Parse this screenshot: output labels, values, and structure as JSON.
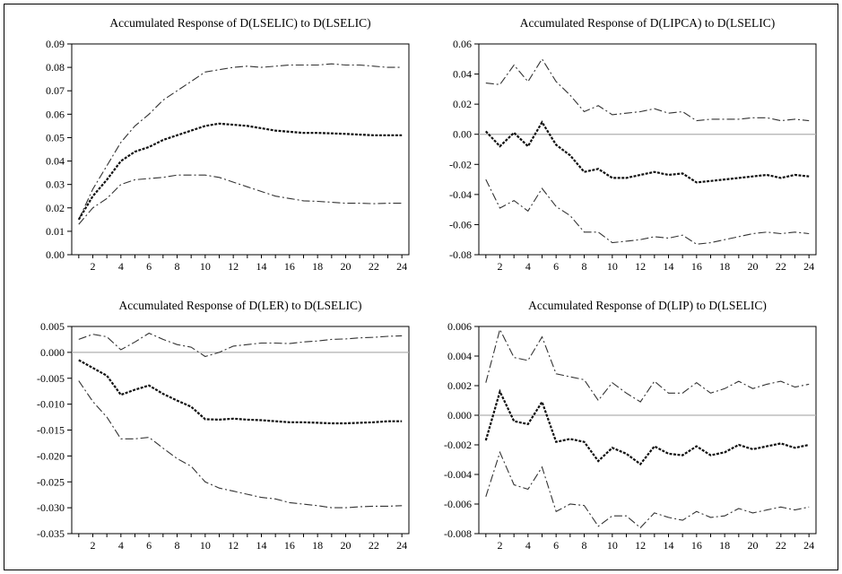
{
  "chart_data": [
    {
      "type": "line",
      "title": "Accumulated Response of D(LSELIC) to D(LSELIC)",
      "x": [
        1,
        2,
        3,
        4,
        5,
        6,
        7,
        8,
        9,
        10,
        11,
        12,
        13,
        14,
        15,
        16,
        17,
        18,
        19,
        20,
        21,
        22,
        23,
        24
      ],
      "xticks": [
        2,
        4,
        6,
        8,
        10,
        12,
        14,
        16,
        18,
        20,
        22,
        24
      ],
      "ylim": [
        0,
        0.09
      ],
      "yticks": [
        "0.00",
        "0.01",
        "0.02",
        "0.03",
        "0.04",
        "0.05",
        "0.06",
        "0.07",
        "0.08",
        "0.09"
      ],
      "zero_line": false,
      "series": [
        {
          "style": "upper",
          "values": [
            0.015,
            0.028,
            0.038,
            0.048,
            0.055,
            0.06,
            0.066,
            0.07,
            0.074,
            0.078,
            0.079,
            0.08,
            0.0805,
            0.08,
            0.0805,
            0.081,
            0.081,
            0.081,
            0.0815,
            0.081,
            0.081,
            0.0805,
            0.08,
            0.08
          ]
        },
        {
          "style": "response",
          "values": [
            0.015,
            0.025,
            0.032,
            0.04,
            0.044,
            0.046,
            0.049,
            0.051,
            0.053,
            0.055,
            0.056,
            0.0555,
            0.055,
            0.054,
            0.053,
            0.0525,
            0.052,
            0.052,
            0.0518,
            0.0516,
            0.0513,
            0.051,
            0.051,
            0.051
          ]
        },
        {
          "style": "lower",
          "values": [
            0.013,
            0.02,
            0.024,
            0.03,
            0.032,
            0.0325,
            0.033,
            0.034,
            0.034,
            0.034,
            0.033,
            0.031,
            0.029,
            0.027,
            0.025,
            0.024,
            0.023,
            0.0228,
            0.0224,
            0.022,
            0.022,
            0.0218,
            0.022,
            0.022
          ]
        }
      ]
    },
    {
      "type": "line",
      "title": "Accumulated Response of D(LIPCA) to D(LSELIC)",
      "x": [
        1,
        2,
        3,
        4,
        5,
        6,
        7,
        8,
        9,
        10,
        11,
        12,
        13,
        14,
        15,
        16,
        17,
        18,
        19,
        20,
        21,
        22,
        23,
        24
      ],
      "xticks": [
        2,
        4,
        6,
        8,
        10,
        12,
        14,
        16,
        18,
        20,
        22,
        24
      ],
      "ylim": [
        -0.08,
        0.06
      ],
      "yticks": [
        "-0.08",
        "-0.06",
        "-0.04",
        "-0.02",
        "0.00",
        "0.02",
        "0.04",
        "0.06"
      ],
      "zero_line": true,
      "series": [
        {
          "style": "upper",
          "values": [
            0.034,
            0.033,
            0.046,
            0.035,
            0.05,
            0.035,
            0.026,
            0.015,
            0.019,
            0.013,
            0.014,
            0.015,
            0.017,
            0.014,
            0.015,
            0.009,
            0.01,
            0.01,
            0.01,
            0.011,
            0.011,
            0.009,
            0.01,
            0.009
          ]
        },
        {
          "style": "response",
          "values": [
            0.002,
            -0.008,
            0.001,
            -0.008,
            0.008,
            -0.007,
            -0.014,
            -0.025,
            -0.023,
            -0.029,
            -0.029,
            -0.027,
            -0.025,
            -0.027,
            -0.026,
            -0.032,
            -0.031,
            -0.03,
            -0.029,
            -0.028,
            -0.027,
            -0.029,
            -0.027,
            -0.028
          ]
        },
        {
          "style": "lower",
          "values": [
            -0.03,
            -0.049,
            -0.044,
            -0.051,
            -0.036,
            -0.048,
            -0.054,
            -0.065,
            -0.065,
            -0.072,
            -0.071,
            -0.07,
            -0.068,
            -0.069,
            -0.067,
            -0.073,
            -0.072,
            -0.07,
            -0.068,
            -0.066,
            -0.065,
            -0.066,
            -0.065,
            -0.066
          ]
        }
      ]
    },
    {
      "type": "line",
      "title": "Accumulated Response of D(LER) to D(LSELIC)",
      "x": [
        1,
        2,
        3,
        4,
        5,
        6,
        7,
        8,
        9,
        10,
        11,
        12,
        13,
        14,
        15,
        16,
        17,
        18,
        19,
        20,
        21,
        22,
        23,
        24
      ],
      "xticks": [
        2,
        4,
        6,
        8,
        10,
        12,
        14,
        16,
        18,
        20,
        22,
        24
      ],
      "ylim": [
        -0.035,
        0.005
      ],
      "yticks": [
        "-0.035",
        "-0.030",
        "-0.025",
        "-0.020",
        "-0.015",
        "-0.010",
        "-0.005",
        "0.000",
        "0.005"
      ],
      "zero_line": true,
      "series": [
        {
          "style": "upper",
          "values": [
            0.0025,
            0.0035,
            0.003,
            0.0005,
            0.002,
            0.0037,
            0.0025,
            0.0015,
            0.001,
            -0.0008,
            0.0,
            0.0012,
            0.0015,
            0.0018,
            0.0018,
            0.0017,
            0.002,
            0.0022,
            0.0025,
            0.0026,
            0.0028,
            0.0029,
            0.0031,
            0.0032
          ]
        },
        {
          "style": "response",
          "values": [
            -0.0015,
            -0.003,
            -0.0045,
            -0.0082,
            -0.0072,
            -0.0064,
            -0.008,
            -0.0093,
            -0.0105,
            -0.0129,
            -0.013,
            -0.0128,
            -0.013,
            -0.0131,
            -0.0133,
            -0.0135,
            -0.0135,
            -0.0136,
            -0.0137,
            -0.0137,
            -0.0136,
            -0.0135,
            -0.0133,
            -0.0133
          ]
        },
        {
          "style": "lower",
          "values": [
            -0.0055,
            -0.0095,
            -0.0125,
            -0.0167,
            -0.0167,
            -0.0164,
            -0.0185,
            -0.0205,
            -0.022,
            -0.025,
            -0.0262,
            -0.0268,
            -0.0274,
            -0.028,
            -0.0283,
            -0.029,
            -0.0293,
            -0.0296,
            -0.03,
            -0.03,
            -0.0298,
            -0.0297,
            -0.0297,
            -0.0296
          ]
        }
      ]
    },
    {
      "type": "line",
      "title": "Accumulated Response of D(LIP) to D(LSELIC)",
      "x": [
        1,
        2,
        3,
        4,
        5,
        6,
        7,
        8,
        9,
        10,
        11,
        12,
        13,
        14,
        15,
        16,
        17,
        18,
        19,
        20,
        21,
        22,
        23,
        24
      ],
      "xticks": [
        2,
        4,
        6,
        8,
        10,
        12,
        14,
        16,
        18,
        20,
        22,
        24
      ],
      "ylim": [
        -0.008,
        0.006
      ],
      "yticks": [
        "-0.008",
        "-0.006",
        "-0.004",
        "-0.002",
        "0.000",
        "0.002",
        "0.004",
        "0.006"
      ],
      "zero_line": true,
      "series": [
        {
          "style": "upper",
          "values": [
            0.0022,
            0.0058,
            0.0039,
            0.0037,
            0.0053,
            0.0028,
            0.0026,
            0.0024,
            0.001,
            0.0022,
            0.0015,
            0.0009,
            0.0023,
            0.0015,
            0.0015,
            0.0022,
            0.0015,
            0.0018,
            0.0023,
            0.0018,
            0.0021,
            0.0023,
            0.0019,
            0.0021
          ]
        },
        {
          "style": "response",
          "values": [
            -0.0017,
            0.0016,
            -0.0004,
            -0.0006,
            0.0009,
            -0.0018,
            -0.0016,
            -0.0018,
            -0.0031,
            -0.0022,
            -0.0026,
            -0.0033,
            -0.0021,
            -0.0026,
            -0.0027,
            -0.0021,
            -0.0027,
            -0.0025,
            -0.002,
            -0.0023,
            -0.0021,
            -0.0019,
            -0.0022,
            -0.002
          ]
        },
        {
          "style": "lower",
          "values": [
            -0.0055,
            -0.0025,
            -0.0047,
            -0.005,
            -0.0035,
            -0.0065,
            -0.006,
            -0.0061,
            -0.0075,
            -0.0068,
            -0.0068,
            -0.0076,
            -0.0066,
            -0.0069,
            -0.0071,
            -0.0065,
            -0.0069,
            -0.0068,
            -0.0063,
            -0.0066,
            -0.0064,
            -0.0062,
            -0.0064,
            -0.0062
          ]
        }
      ]
    }
  ],
  "colors": {
    "axis": "#000000",
    "response_line": "#111111",
    "band_line": "#333333",
    "zero_line": "#b0b0b0"
  }
}
